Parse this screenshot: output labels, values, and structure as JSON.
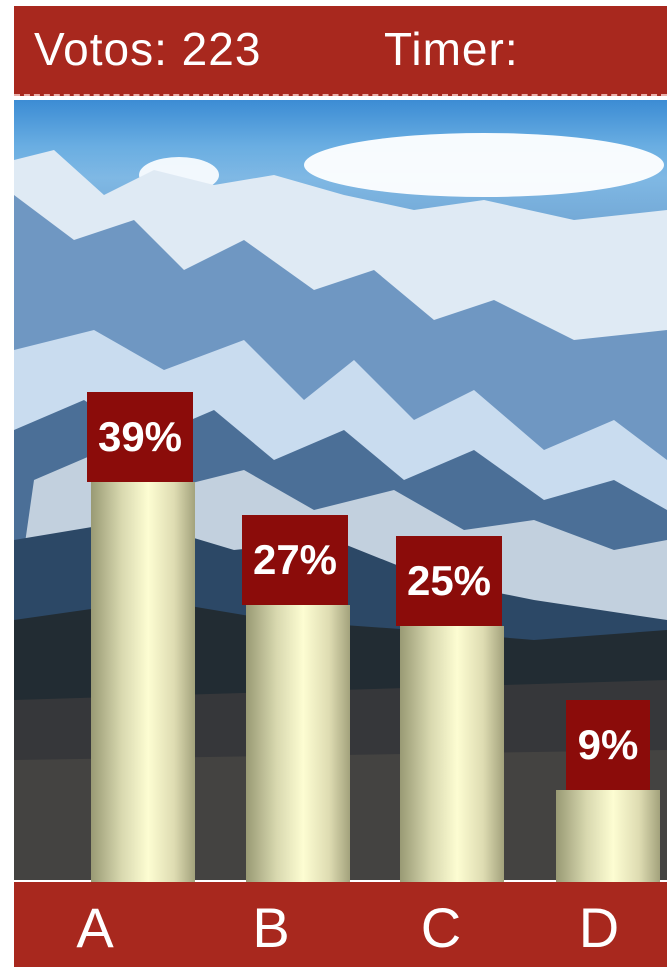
{
  "header": {
    "title": "Votos: 223",
    "timer_label": "Timer:"
  },
  "chart_data": {
    "type": "bar",
    "categories": [
      "A",
      "B",
      "C",
      "D"
    ],
    "values": [
      39,
      27,
      25,
      9
    ],
    "value_labels": [
      "39%",
      "27%",
      "25%",
      "9%"
    ],
    "ylabel": "",
    "xlabel": "",
    "ylim": [
      0,
      45
    ]
  },
  "colors": {
    "header_bg": "#a8281e",
    "label_bg": "#8b0c0a",
    "bar_fill": "#fdfdd2"
  },
  "background": "snowy-mountain-photo"
}
